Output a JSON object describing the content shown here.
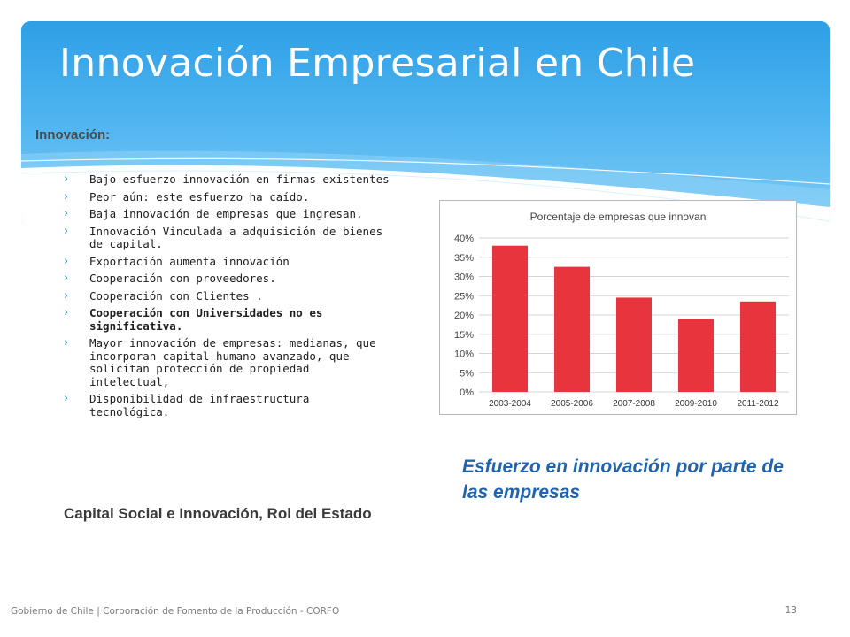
{
  "slide": {
    "title": "Innovación Empresarial en Chile",
    "subtitle": "Innovación:",
    "bullets": [
      {
        "text": "Bajo esfuerzo innovación en firmas existentes",
        "bold": false
      },
      {
        "text": "Peor aún: este esfuerzo ha caído.",
        "bold": false
      },
      {
        "text": "Baja innovación de empresas que ingresan.",
        "bold": false
      },
      {
        "text": "Innovación Vinculada a adquisición de bienes de capital.",
        "bold": false
      },
      {
        "text": "Exportación aumenta innovación",
        "bold": false
      },
      {
        "text": "Cooperación con proveedores.",
        "bold": false
      },
      {
        "text": "Cooperación con Clientes .",
        "bold": false
      },
      {
        "text": "Cooperación con Universidades no es significativa.",
        "bold": true
      },
      {
        "text": "Mayor innovación de empresas: medianas, que incorporan capital humano avanzado, que solicitan protección de propiedad intelectual,",
        "bold": false
      },
      {
        "text": "Disponibilidad de infraestructura tecnológica.",
        "bold": false
      }
    ],
    "bullet_marker": "›",
    "closing_line": "Capital Social e Innovación, Rol del Estado",
    "caption": "Esfuerzo en innovación por parte de las empresas",
    "footer_text": "Gobierno de Chile | Corporación de Fomento de la Producción - CORFO",
    "page_number": "13"
  },
  "colors": {
    "banner": "#2e9fe6",
    "bar": "#e8343c",
    "caption": "#1f64b4",
    "bullet_marker": "#1a9ae0"
  },
  "chart_data": {
    "type": "bar",
    "title": "Porcentaje de empresas que innovan",
    "categories": [
      "2003-2004",
      "2005-2006",
      "2007-2008",
      "2009-2010",
      "2011-2012"
    ],
    "values": [
      38,
      32.5,
      24.5,
      19,
      23.5
    ],
    "ylim": [
      0,
      40
    ],
    "yticks": [
      "0%",
      "5%",
      "10%",
      "15%",
      "20%",
      "25%",
      "30%",
      "35%",
      "40%"
    ],
    "grid": true,
    "xlabel": "",
    "ylabel": ""
  }
}
